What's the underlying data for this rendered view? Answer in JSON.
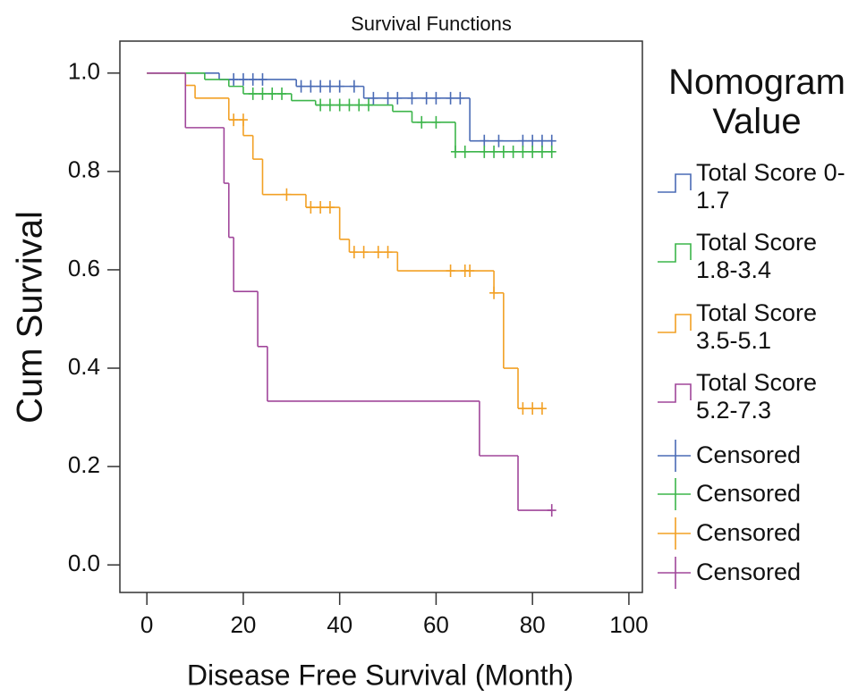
{
  "chart_data": {
    "type": "survival",
    "title": "Survival Functions",
    "x_label": "Disease Free Survival (Month)",
    "y_label": "Cum Survival",
    "legend_title": "Nomogram Value",
    "xlim": [
      -5.6,
      102.8
    ],
    "ylim": [
      -0.056,
      1.065
    ],
    "xticks": [
      0,
      20,
      40,
      60,
      80,
      100
    ],
    "yticks": [
      {
        "value": 0,
        "label": "0.0"
      },
      0.2,
      0.4,
      0.6,
      0.8,
      {
        "value": 1,
        "label": "1.0"
      }
    ],
    "series": [
      {
        "name": "Total Score 0-1.7",
        "style": "step",
        "color": "#4a6bb5",
        "x": [
          0,
          15,
          31,
          45,
          67,
          84
        ],
        "values": [
          1,
          0.987,
          0.973,
          0.949,
          0.862,
          0.862
        ]
      },
      {
        "name": "Total Score 1.8-3.4",
        "style": "step",
        "color": "#3cb54a",
        "x": [
          0,
          12,
          17,
          20,
          30,
          35,
          51,
          55,
          64,
          84
        ],
        "values": [
          1,
          0.987,
          0.973,
          0.958,
          0.944,
          0.935,
          0.922,
          0.9,
          0.84,
          0.84
        ]
      },
      {
        "name": "Total Score 3.5-5.1",
        "style": "step",
        "color": "#f2a024",
        "x": [
          0,
          8,
          10,
          17,
          20,
          22,
          24,
          33,
          40,
          42,
          52,
          72,
          74,
          77,
          82
        ],
        "values": [
          1,
          0.975,
          0.949,
          0.905,
          0.873,
          0.825,
          0.753,
          0.727,
          0.662,
          0.636,
          0.598,
          0.553,
          0.4,
          0.318,
          0.318
        ]
      },
      {
        "name": "Total Score 5.2-7.3",
        "style": "step",
        "color": "#a0469a",
        "x": [
          0,
          8,
          16,
          17,
          18,
          23,
          25,
          69,
          77,
          84
        ],
        "values": [
          1,
          0.889,
          0.776,
          0.666,
          0.556,
          0.444,
          0.333,
          0.222,
          0.111,
          0.111
        ]
      },
      {
        "name": "Censored",
        "style": "censor",
        "color": "#4a6bb5",
        "x": [
          18,
          20,
          22,
          24,
          32,
          34,
          36,
          38,
          40,
          43,
          47,
          50,
          52,
          55,
          58,
          60,
          63,
          65,
          70,
          73,
          78,
          80,
          82,
          84
        ],
        "values": [
          0.987,
          0.987,
          0.987,
          0.987,
          0.973,
          0.973,
          0.973,
          0.973,
          0.973,
          0.973,
          0.949,
          0.949,
          0.949,
          0.949,
          0.949,
          0.949,
          0.949,
          0.949,
          0.862,
          0.862,
          0.862,
          0.862,
          0.862,
          0.862
        ]
      },
      {
        "name": "Censored",
        "style": "censor",
        "color": "#3cb54a",
        "x": [
          22,
          24,
          26,
          28,
          36,
          38,
          40,
          42,
          44,
          46,
          57,
          60,
          64,
          66,
          70,
          72,
          74,
          76,
          78,
          80,
          82,
          84
        ],
        "values": [
          0.958,
          0.958,
          0.958,
          0.958,
          0.935,
          0.935,
          0.935,
          0.935,
          0.935,
          0.935,
          0.9,
          0.9,
          0.84,
          0.84,
          0.84,
          0.84,
          0.84,
          0.84,
          0.84,
          0.84,
          0.84,
          0.84
        ]
      },
      {
        "name": "Censored",
        "style": "censor",
        "color": "#f2a024",
        "x": [
          18,
          20,
          29,
          34,
          36,
          38,
          43,
          45,
          48,
          50,
          63,
          66,
          67,
          72,
          78,
          80,
          82
        ],
        "values": [
          0.905,
          0.905,
          0.753,
          0.727,
          0.727,
          0.727,
          0.636,
          0.636,
          0.636,
          0.636,
          0.598,
          0.598,
          0.598,
          0.553,
          0.318,
          0.318,
          0.318
        ]
      },
      {
        "name": "Censored",
        "style": "censor",
        "color": "#a0469a",
        "x": [
          84
        ],
        "values": [
          0.111
        ]
      }
    ]
  }
}
